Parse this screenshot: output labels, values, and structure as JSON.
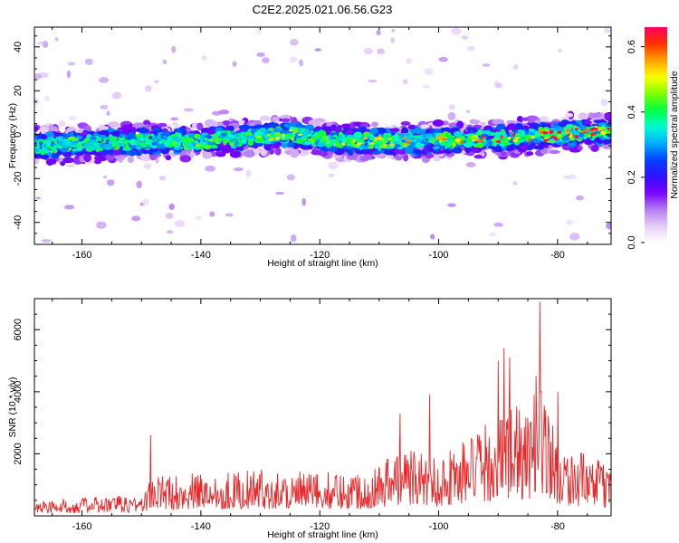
{
  "chart_data": [
    {
      "type": "heatmap",
      "title": "C2E2.2025.021.06.56.G23",
      "xlabel": "Height of straight line (km)",
      "ylabel": "Frequency (Hz)",
      "xlim": [
        -168,
        -71
      ],
      "ylim": [
        -50,
        49
      ],
      "xticks": [
        -160,
        -140,
        -120,
        -100,
        -80
      ],
      "yticks": [
        -40,
        -20,
        0,
        20,
        40
      ],
      "colorbar": {
        "label": "Normalized spectral amplitude",
        "range": [
          0.0,
          0.66
        ],
        "ticks": [
          0.0,
          0.2,
          0.4,
          0.6
        ],
        "colormap": [
          "#ffffff",
          "#e6cdf7",
          "#b47df0",
          "#7a00ff",
          "#3010ff",
          "#0040ff",
          "#00b0ff",
          "#00ffd0",
          "#00ff40",
          "#80ff00",
          "#ffff00",
          "#ffa000",
          "#ff3000",
          "#ff0060"
        ]
      },
      "band": {
        "description": "bright band near 0 Hz across all heights",
        "center_hz": [
          {
            "x": -168,
            "y": -5
          },
          {
            "x": -150,
            "y": -3
          },
          {
            "x": -140,
            "y": -3
          },
          {
            "x": -125,
            "y": 0
          },
          {
            "x": -115,
            "y": -3
          },
          {
            "x": -100,
            "y": -3
          },
          {
            "x": -85,
            "y": -1
          },
          {
            "x": -71,
            "y": 2
          }
        ],
        "halfwidth_hz": 7,
        "peak_amplitude": 0.65
      },
      "grid": false
    },
    {
      "type": "line",
      "title": "",
      "xlabel": "Height of straight line (km)",
      "ylabel": "SNR (10 * v/v)",
      "xlim": [
        -168,
        -71
      ],
      "ylim": [
        0,
        7000
      ],
      "xticks": [
        -160,
        -140,
        -120,
        -100,
        -80
      ],
      "yticks": [
        2000,
        4000,
        6000
      ],
      "color": "#e8282a",
      "envelope": [
        {
          "x": -168,
          "y": 500
        },
        {
          "x": -150,
          "y": 700
        },
        {
          "x": -148,
          "y": 1300
        },
        {
          "x": -140,
          "y": 1400
        },
        {
          "x": -130,
          "y": 1500
        },
        {
          "x": -120,
          "y": 1400
        },
        {
          "x": -112,
          "y": 1500
        },
        {
          "x": -106,
          "y": 2300
        },
        {
          "x": -100,
          "y": 2000
        },
        {
          "x": -95,
          "y": 2600
        },
        {
          "x": -90,
          "y": 3200
        },
        {
          "x": -88,
          "y": 3800
        },
        {
          "x": -85,
          "y": 3200
        },
        {
          "x": -83,
          "y": 5200
        },
        {
          "x": -80,
          "y": 2400
        },
        {
          "x": -71,
          "y": 1600
        }
      ],
      "peaks": [
        {
          "x": -148.5,
          "y": 2600
        },
        {
          "x": -106.5,
          "y": 3300
        },
        {
          "x": -101.5,
          "y": 3900
        },
        {
          "x": -90,
          "y": 5000
        },
        {
          "x": -89,
          "y": 5400
        },
        {
          "x": -88,
          "y": 5100
        },
        {
          "x": -84,
          "y": 3900
        },
        {
          "x": -83,
          "y": 6900
        },
        {
          "x": -80,
          "y": 4000
        }
      ],
      "grid": false
    }
  ]
}
